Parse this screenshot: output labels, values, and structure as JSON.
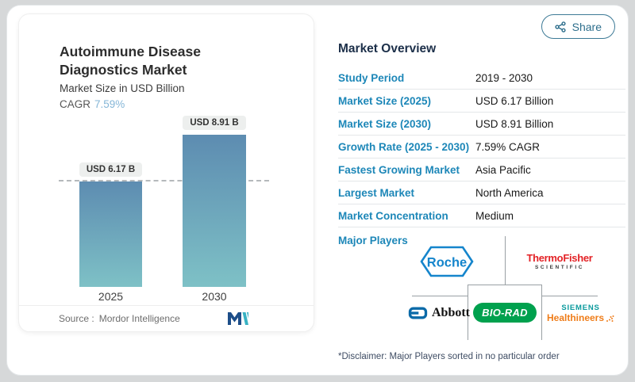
{
  "colors": {
    "label_blue": "#1d87b8",
    "heading_navy": "#1c2f49",
    "bar_top": "#5d8cb1",
    "bar_bottom": "#7ec1c6",
    "cagr_accent": "#85b6d7",
    "share_teal": "#2d6e8c",
    "roche_blue": "#1585cc",
    "thermo_red": "#e32226",
    "abbott_blue": "#0b6aa8",
    "biorad_green": "#00a14e",
    "siemens_teal": "#0a9a9d",
    "healthineers_orange": "#ef7d1a",
    "mordor_navy": "#1d4e89",
    "mordor_teal": "#38b2c3"
  },
  "share": {
    "label": "Share"
  },
  "chart_card": {
    "title": "Autoimmune Disease Diagnostics Market",
    "subtitle": "Market Size in USD Billion",
    "cagr_label": "CAGR",
    "cagr_value": "7.59%",
    "source_label": "Source :",
    "source_value": "Mordor Intelligence"
  },
  "chart_data": {
    "type": "bar",
    "title": "Autoimmune Disease Diagnostics Market",
    "ylabel": "Market Size in USD Billion",
    "categories": [
      "2025",
      "2030"
    ],
    "values": [
      6.17,
      8.91
    ],
    "value_labels": [
      "USD 6.17 B",
      "USD 8.91 B"
    ],
    "cagr": "7.59%",
    "ylim": [
      0,
      8.91
    ],
    "grid": false,
    "dashed_reference_value": 6.17,
    "bar_gradient": [
      "#5d8cb1",
      "#7ec1c6"
    ]
  },
  "overview": {
    "heading": "Market Overview",
    "rows": [
      {
        "label": "Study Period",
        "value": "2019 - 2030"
      },
      {
        "label": "Market Size (2025)",
        "value": "USD 6.17 Billion"
      },
      {
        "label": "Market Size (2030)",
        "value": "USD 8.91 Billion"
      },
      {
        "label": "Growth Rate (2025 - 2030)",
        "value": "7.59% CAGR"
      },
      {
        "label": "Fastest Growing Market",
        "value": "Asia Pacific"
      },
      {
        "label": "Largest Market",
        "value": "North America"
      },
      {
        "label": "Market Concentration",
        "value": "Medium"
      }
    ],
    "major_players_label": "Major Players",
    "players": {
      "roche": "Roche",
      "thermo_line1": "ThermoFisher",
      "thermo_line2": "SCIENTIFIC",
      "abbott": "Abbott",
      "biorad": "BIO-RAD",
      "siemens_line1": "SIEMENS",
      "siemens_line2": "Healthineers"
    },
    "disclaimer": "*Disclaimer: Major Players sorted in no particular order"
  }
}
